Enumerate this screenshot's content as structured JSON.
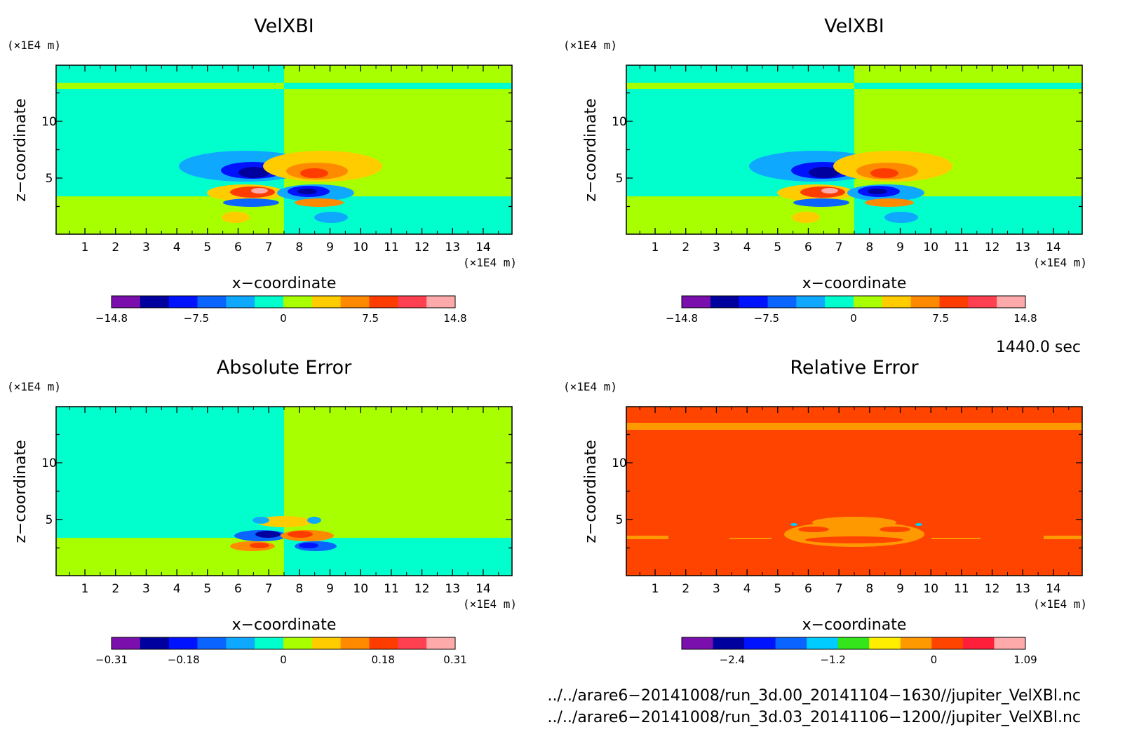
{
  "palette": {
    "velocity": [
      "#7b0fae",
      "#00009f",
      "#0013ff",
      "#0a64ff",
      "#0fa8ff",
      "#00ffcc",
      "#a8ff00",
      "#ffcc00",
      "#ff8a00",
      "#ff3c00",
      "#ff4050",
      "#ffaaaa"
    ],
    "relative": [
      "#7b0fae",
      "#00009f",
      "#0013ff",
      "#0a64ff",
      "#00ccff",
      "#33e51a",
      "#ffee00",
      "#ff9900",
      "#ff4400",
      "#ff1f3a",
      "#ffaaaa"
    ]
  },
  "chart_data": [
    {
      "type": "heatmap",
      "title": "VelXBI",
      "xlabel": "x−coordinate",
      "ylabel": "z−coordinate",
      "x_unit": "(×1E4 m)",
      "y_unit": "(×1E4 m)",
      "xlim": [
        0.06,
        14.94
      ],
      "ylim": [
        0.06,
        14.94
      ],
      "xticks": [
        1,
        2,
        3,
        4,
        5,
        6,
        7,
        8,
        9,
        10,
        11,
        12,
        13,
        14
      ],
      "yticks": [
        5,
        10
      ],
      "colorbar_labels": [
        "−14.8",
        "−7.5",
        "0",
        "7.5",
        "14.8"
      ],
      "colorbar_range": [
        -14.8,
        14.8
      ],
      "palette": "velocity"
    },
    {
      "type": "heatmap",
      "title": "VelXBI",
      "xlabel": "x−coordinate",
      "ylabel": "z−coordinate",
      "x_unit": "(×1E4 m)",
      "y_unit": "(×1E4 m)",
      "xlim": [
        0.06,
        14.94
      ],
      "ylim": [
        0.06,
        14.94
      ],
      "xticks": [
        1,
        2,
        3,
        4,
        5,
        6,
        7,
        8,
        9,
        10,
        11,
        12,
        13,
        14
      ],
      "yticks": [
        5,
        10
      ],
      "colorbar_labels": [
        "−14.8",
        "−7.5",
        "0",
        "7.5",
        "14.8"
      ],
      "colorbar_range": [
        -14.8,
        14.8
      ],
      "palette": "velocity"
    },
    {
      "type": "heatmap",
      "title": "Absolute Error",
      "xlabel": "x−coordinate",
      "ylabel": "z−coordinate",
      "x_unit": "(×1E4 m)",
      "y_unit": "(×1E4 m)",
      "xlim": [
        0.06,
        14.94
      ],
      "ylim": [
        0.06,
        14.94
      ],
      "xticks": [
        1,
        2,
        3,
        4,
        5,
        6,
        7,
        8,
        9,
        10,
        11,
        12,
        13,
        14
      ],
      "yticks": [
        5,
        10
      ],
      "colorbar_labels": [
        "−0.31",
        "−0.18",
        "0",
        "0.18",
        "0.31"
      ],
      "colorbar_range": [
        -0.31,
        0.31
      ],
      "palette": "velocity"
    },
    {
      "type": "heatmap",
      "title": "Relative Error",
      "xlabel": "x−coordinate",
      "ylabel": "z−coordinate",
      "x_unit": "(×1E4 m)",
      "y_unit": "(×1E4 m)",
      "xlim": [
        0.06,
        14.94
      ],
      "ylim": [
        0.06,
        14.94
      ],
      "xticks": [
        1,
        2,
        3,
        4,
        5,
        6,
        7,
        8,
        9,
        10,
        11,
        12,
        13,
        14
      ],
      "yticks": [
        5,
        10
      ],
      "colorbar_labels": [
        "−2.4",
        "−1.2",
        "0",
        "1.09"
      ],
      "colorbar_range": [
        -3.0,
        1.09
      ],
      "palette": "relative"
    }
  ],
  "time_label": "1440.0 sec",
  "files": [
    "../../arare6−20141008/run_3d.00_20141104−1630//jupiter_VelXBl.nc",
    "../../arare6−20141008/run_3d.03_20141106−1200//jupiter_VelXBl.nc"
  ]
}
